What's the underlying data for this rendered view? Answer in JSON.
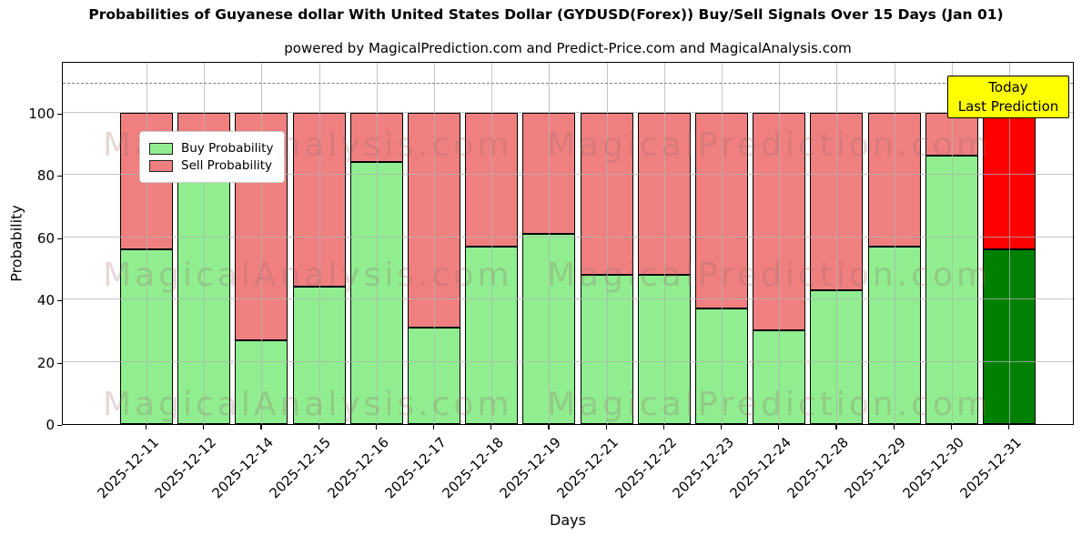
{
  "title": "Probabilities of Guyanese dollar With United States Dollar (GYDUSD(Forex)) Buy/Sell Signals Over 15 Days (Jan 01)",
  "subtitle": "powered by MagicalPrediction.com and Predict-Price.com and MagicalAnalysis.com",
  "legend": {
    "items": [
      {
        "label": "Buy Probability",
        "color": "#90EE90"
      },
      {
        "label": "Sell Probability",
        "color": "#F08080"
      }
    ]
  },
  "annotation": {
    "line1": "Today",
    "line2": "Last Prediction",
    "bg_color": "#FFFF00"
  },
  "watermark": {
    "left_text": "MagicalAnalysis.com",
    "right_text": "MagicalPrediction.com"
  },
  "axes": {
    "xlabel": "Days",
    "ylabel": "Probability",
    "yticks": [
      0,
      20,
      40,
      60,
      80,
      100
    ],
    "grid": true,
    "dashed_line_y": 110
  },
  "colors": {
    "buy": "#90EE90",
    "sell": "#F08080",
    "today_buy": "#008000",
    "today_sell": "#FF0000",
    "bar_edge": "#000000"
  },
  "chart_data": {
    "type": "bar",
    "stacked": true,
    "title": "Probabilities of Guyanese dollar With United States Dollar (GYDUSD(Forex)) Buy/Sell Signals Over 15 Days (Jan 01)",
    "xlabel": "Days",
    "ylabel": "Probability",
    "ylim": [
      0,
      116.5
    ],
    "legend_position": "upper left",
    "grid": true,
    "categories": [
      "2025-12-11",
      "2025-12-12",
      "2025-12-14",
      "2025-12-15",
      "2025-12-16",
      "2025-12-17",
      "2025-12-18",
      "2025-12-19",
      "2025-12-21",
      "2025-12-22",
      "2025-12-23",
      "2025-12-24",
      "2025-12-28",
      "2025-12-29",
      "2025-12-30",
      "2025-12-31"
    ],
    "series": [
      {
        "name": "Buy Probability",
        "values": [
          56,
          93,
          27,
          44,
          84,
          31,
          57,
          61,
          48,
          48,
          37,
          30,
          43,
          57,
          86,
          56
        ]
      },
      {
        "name": "Sell Probability",
        "values": [
          44,
          7,
          73,
          56,
          16,
          69,
          43,
          39,
          52,
          52,
          63,
          70,
          57,
          43,
          14,
          44
        ]
      }
    ],
    "today_index": 15,
    "dashed_line_y": 110
  }
}
